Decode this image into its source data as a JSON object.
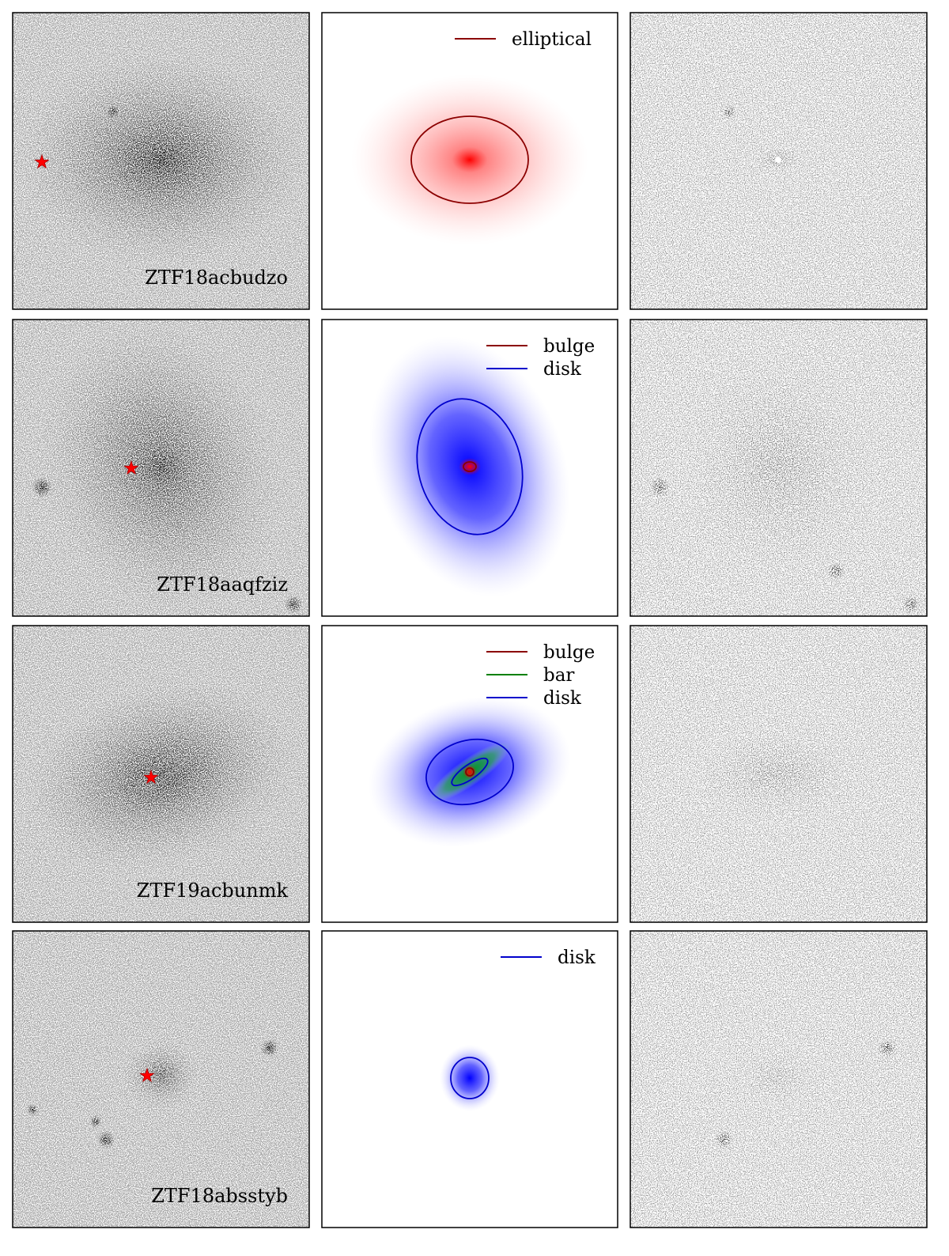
{
  "rows": [
    {
      "label": "ZTF18acbudzo",
      "legend": [
        {
          "name": "elliptical",
          "color": "#8b0000"
        }
      ]
    },
    {
      "label": "ZTF18aaqfziz",
      "legend": [
        {
          "name": "bulge",
          "color": "#8b0000"
        },
        {
          "name": "disk",
          "color": "#0000cc"
        }
      ]
    },
    {
      "label": "ZTF19acbunmk",
      "legend": [
        {
          "name": "bulge",
          "color": "#8b0000"
        },
        {
          "name": "bar",
          "color": "#008000"
        },
        {
          "name": "disk",
          "color": "#0000cc"
        }
      ]
    },
    {
      "label": "ZTF18absstyb",
      "legend": [
        {
          "name": "disk",
          "color": "#0000cc"
        }
      ]
    }
  ]
}
